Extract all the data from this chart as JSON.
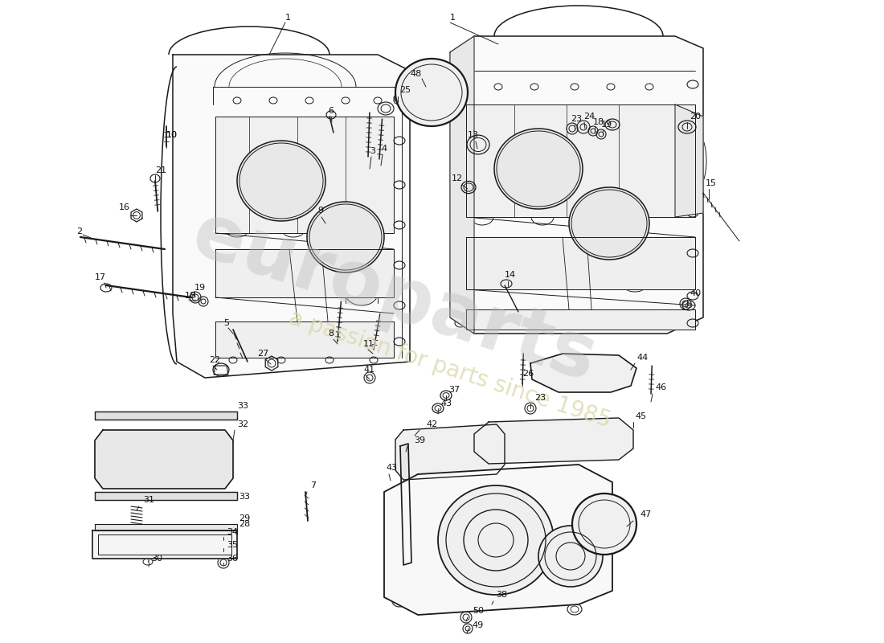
{
  "bg_color": "#ffffff",
  "line_color": "#1a1a1a",
  "lw_main": 1.1,
  "lw_thin": 0.7,
  "lw_thick": 1.6,
  "watermark1": "europarts",
  "watermark2": "a passion for parts since 1985",
  "fig_w": 11.0,
  "fig_h": 8.0,
  "dpi": 100
}
